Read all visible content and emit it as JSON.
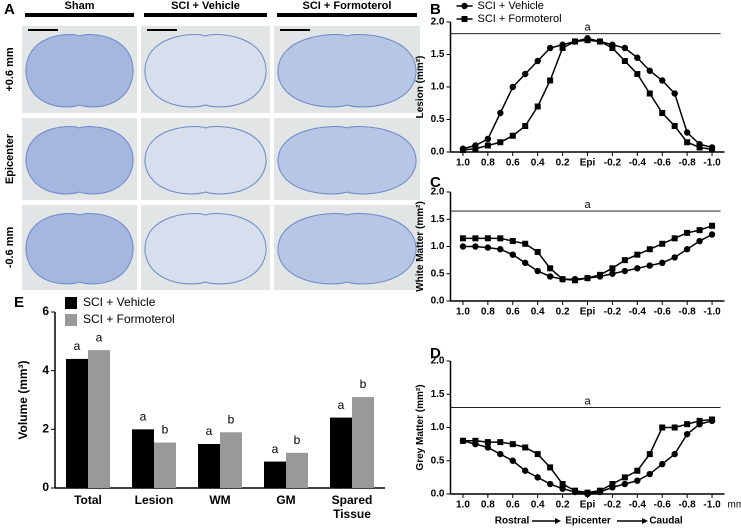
{
  "panel_a": {
    "label": "A",
    "columns": [
      "Sham",
      "SCI + Vehicle",
      "SCI + Formoterol"
    ],
    "rows": [
      "+0.6 mm",
      "Epicenter",
      "-0.6 mm"
    ]
  },
  "chart_data": [
    {
      "type": "line",
      "label": "B",
      "ylabel": "Lesion (mm²)",
      "x": [
        1.0,
        0.9,
        0.8,
        0.7,
        0.6,
        0.5,
        0.4,
        0.3,
        0.2,
        0.1,
        0,
        -0.1,
        -0.2,
        -0.3,
        -0.4,
        -0.5,
        -0.6,
        -0.7,
        -0.8,
        -0.9,
        -1.0
      ],
      "series": [
        {
          "name": "SCI + Vehicle",
          "color": "#000000",
          "marker": "circle",
          "values": [
            0.05,
            0.1,
            0.2,
            0.6,
            1.0,
            1.2,
            1.4,
            1.6,
            1.65,
            1.7,
            1.75,
            1.7,
            1.65,
            1.6,
            1.45,
            1.25,
            1.1,
            0.9,
            0.3,
            0.12,
            0.07
          ]
        },
        {
          "name": "SCI + Formoterol",
          "color": "#000000",
          "marker": "square",
          "values": [
            0.03,
            0.05,
            0.1,
            0.15,
            0.25,
            0.4,
            0.7,
            1.1,
            1.6,
            1.7,
            1.72,
            1.7,
            1.6,
            1.4,
            1.2,
            0.9,
            0.6,
            0.4,
            0.15,
            0.07,
            0.04
          ]
        }
      ],
      "xlim": [
        1.1,
        -1.1
      ],
      "xticks": [
        {
          "value": 1.0,
          "label": "1.0"
        },
        {
          "value": 0.8,
          "label": "0.8"
        },
        {
          "value": 0.6,
          "label": "0.6"
        },
        {
          "value": 0.4,
          "label": "0.4"
        },
        {
          "value": 0.2,
          "label": "0.2"
        },
        {
          "value": 0,
          "label": "Epi"
        },
        {
          "value": -0.2,
          "label": "-0.2"
        },
        {
          "value": -0.4,
          "label": "-0.4"
        },
        {
          "value": -0.6,
          "label": "-0.6"
        },
        {
          "value": -0.8,
          "label": "-0.8"
        },
        {
          "value": -1.0,
          "label": "-1.0"
        }
      ],
      "ylim": [
        0,
        2
      ],
      "yticks": [
        {
          "value": 0,
          "label": "0.0"
        },
        {
          "value": 0.5,
          "label": "0.5"
        },
        {
          "value": 1,
          "label": "1.0"
        },
        {
          "value": 1.5,
          "label": "1.5"
        },
        {
          "value": 2,
          "label": "2.0"
        }
      ],
      "annotation": "a",
      "annotation_line": 1.82,
      "legend": "top-left"
    },
    {
      "type": "line",
      "label": "C",
      "ylabel": "White Matter (mm²)",
      "x": [
        1.0,
        0.9,
        0.8,
        0.7,
        0.6,
        0.5,
        0.4,
        0.3,
        0.2,
        0.1,
        0,
        -0.1,
        -0.2,
        -0.3,
        -0.4,
        -0.5,
        -0.6,
        -0.7,
        -0.8,
        -0.9,
        -1.0
      ],
      "series": [
        {
          "name": "SCI + Vehicle",
          "color": "#000000",
          "marker": "circle",
          "values": [
            1.0,
            1.0,
            0.98,
            0.95,
            0.85,
            0.7,
            0.55,
            0.45,
            0.4,
            0.4,
            0.42,
            0.45,
            0.5,
            0.55,
            0.6,
            0.65,
            0.7,
            0.8,
            0.95,
            1.1,
            1.22
          ]
        },
        {
          "name": "SCI + Formoterol",
          "color": "#000000",
          "marker": "square",
          "values": [
            1.15,
            1.15,
            1.15,
            1.15,
            1.1,
            1.05,
            0.9,
            0.6,
            0.4,
            0.38,
            0.42,
            0.48,
            0.6,
            0.75,
            0.85,
            0.95,
            1.05,
            1.15,
            1.25,
            1.3,
            1.38
          ]
        }
      ],
      "xlim": [
        1.1,
        -1.1
      ],
      "xticks": [
        {
          "value": 1.0,
          "label": "1.0"
        },
        {
          "value": 0.8,
          "label": "0.8"
        },
        {
          "value": 0.6,
          "label": "0.6"
        },
        {
          "value": 0.4,
          "label": "0.4"
        },
        {
          "value": 0.2,
          "label": "0.2"
        },
        {
          "value": 0,
          "label": "Epi"
        },
        {
          "value": -0.2,
          "label": "-0.2"
        },
        {
          "value": -0.4,
          "label": "-0.4"
        },
        {
          "value": -0.6,
          "label": "-0.6"
        },
        {
          "value": -0.8,
          "label": "-0.8"
        },
        {
          "value": -1.0,
          "label": "-1.0"
        }
      ],
      "ylim": [
        0,
        2
      ],
      "yticks": [
        {
          "value": 0,
          "label": "0.0"
        },
        {
          "value": 0.5,
          "label": "0.5"
        },
        {
          "value": 1,
          "label": "1.0"
        },
        {
          "value": 1.5,
          "label": "1.5"
        },
        {
          "value": 2,
          "label": "2.0"
        }
      ],
      "annotation": "a",
      "annotation_line": 1.65
    },
    {
      "type": "line",
      "label": "D",
      "ylabel": "Grey Matter (mm²)",
      "x": [
        1.0,
        0.9,
        0.8,
        0.7,
        0.6,
        0.5,
        0.4,
        0.3,
        0.2,
        0.1,
        0,
        -0.1,
        -0.2,
        -0.3,
        -0.4,
        -0.5,
        -0.6,
        -0.7,
        -0.8,
        -0.9,
        -1.0
      ],
      "series": [
        {
          "name": "SCI + Vehicle",
          "color": "#000000",
          "marker": "circle",
          "values": [
            0.8,
            0.75,
            0.7,
            0.6,
            0.5,
            0.35,
            0.25,
            0.15,
            0.08,
            0.03,
            0.0,
            0.03,
            0.1,
            0.15,
            0.2,
            0.3,
            0.45,
            0.6,
            0.9,
            1.05,
            1.1
          ]
        },
        {
          "name": "SCI + Formoterol",
          "color": "#000000",
          "marker": "square",
          "values": [
            0.8,
            0.8,
            0.78,
            0.78,
            0.75,
            0.7,
            0.6,
            0.4,
            0.15,
            0.05,
            0.02,
            0.05,
            0.15,
            0.25,
            0.35,
            0.6,
            1.0,
            1.0,
            1.05,
            1.1,
            1.12
          ]
        }
      ],
      "xlim": [
        1.1,
        -1.1
      ],
      "xticks": [
        {
          "value": 1.0,
          "label": "1.0"
        },
        {
          "value": 0.8,
          "label": "0.8"
        },
        {
          "value": 0.6,
          "label": "0.6"
        },
        {
          "value": 0.4,
          "label": "0.4"
        },
        {
          "value": 0.2,
          "label": "0.2"
        },
        {
          "value": 0,
          "label": "Epi"
        },
        {
          "value": -0.2,
          "label": "-0.2"
        },
        {
          "value": -0.4,
          "label": "-0.4"
        },
        {
          "value": -0.6,
          "label": "-0.6"
        },
        {
          "value": -0.8,
          "label": "-0.8"
        },
        {
          "value": -1.0,
          "label": "-1.0"
        }
      ],
      "ylim": [
        0,
        2
      ],
      "yticks": [
        {
          "value": 0,
          "label": "0.0"
        },
        {
          "value": 0.5,
          "label": "0.5"
        },
        {
          "value": 1,
          "label": "1.0"
        },
        {
          "value": 1.5,
          "label": "1.5"
        },
        {
          "value": 2,
          "label": "2.0"
        }
      ],
      "annotation": "a",
      "annotation_line": 1.3,
      "xunit": "mm",
      "x_direction": [
        "Rostral",
        "Epicenter",
        "Caudal"
      ]
    },
    {
      "type": "bar",
      "label": "E",
      "ylabel": "Volume (mm³)",
      "categories": [
        "Total",
        "Lesion",
        "WM",
        "GM",
        "Spared Tissue"
      ],
      "series": [
        {
          "name": "SCI + Vehicle",
          "color": "#000000",
          "values": [
            4.4,
            2.0,
            1.5,
            0.9,
            2.4
          ],
          "letters": [
            "a",
            "a",
            "a",
            "a",
            "a"
          ]
        },
        {
          "name": "SCI + Formoterol",
          "color": "#999999",
          "values": [
            4.7,
            1.55,
            1.9,
            1.2,
            3.1
          ],
          "letters": [
            "a",
            "b",
            "b",
            "b",
            "b"
          ]
        }
      ],
      "ylim": [
        0,
        6
      ],
      "yticks": [
        0,
        2,
        4,
        6
      ],
      "legend": "top-left"
    }
  ]
}
